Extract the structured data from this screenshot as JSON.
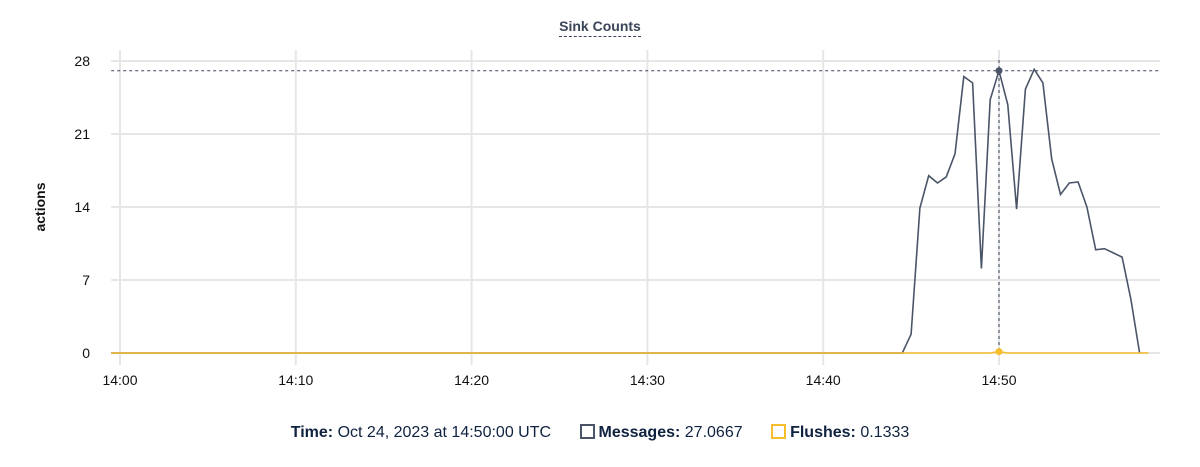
{
  "chart_data": {
    "type": "line",
    "title": "Sink Counts",
    "ylabel": "actions",
    "xlabel": "",
    "ylim": [
      0,
      28
    ],
    "yticks": [
      "0",
      "7",
      "14",
      "21",
      "28"
    ],
    "xticks": [
      "14:00",
      "14:10",
      "14:20",
      "14:30",
      "14:40",
      "14:50"
    ],
    "grid": true,
    "x_start": "13:59:30",
    "x_end": "14:58:30",
    "series": [
      {
        "name": "Messages",
        "color": "#4a5568",
        "points": [
          [
            "13:59:30",
            0
          ],
          [
            "14:44:30",
            0
          ],
          [
            "14:45:00",
            1.8
          ],
          [
            "14:45:30",
            13.9
          ],
          [
            "14:46:00",
            17.0
          ],
          [
            "14:46:30",
            16.3
          ],
          [
            "14:47:00",
            16.9
          ],
          [
            "14:47:30",
            19.1
          ],
          [
            "14:48:00",
            26.5
          ],
          [
            "14:48:30",
            25.9
          ],
          [
            "14:49:00",
            8.1
          ],
          [
            "14:49:30",
            24.3
          ],
          [
            "14:50:00",
            27.0667
          ],
          [
            "14:50:30",
            23.8
          ],
          [
            "14:51:00",
            13.8
          ],
          [
            "14:51:30",
            25.3
          ],
          [
            "14:52:00",
            27.2
          ],
          [
            "14:52:30",
            25.9
          ],
          [
            "14:53:00",
            18.6
          ],
          [
            "14:53:30",
            15.2
          ],
          [
            "14:54:00",
            16.3
          ],
          [
            "14:54:30",
            16.4
          ],
          [
            "14:55:00",
            14.0
          ],
          [
            "14:55:30",
            9.9
          ],
          [
            "14:56:00",
            10.0
          ],
          [
            "14:56:30",
            9.6
          ],
          [
            "14:57:00",
            9.2
          ],
          [
            "14:57:30",
            5.2
          ],
          [
            "14:58:00",
            0
          ]
        ]
      },
      {
        "name": "Flushes",
        "color": "#f6be2c",
        "points": [
          [
            "13:59:30",
            0
          ],
          [
            "14:49:30",
            0
          ],
          [
            "14:50:00",
            0.1333
          ],
          [
            "14:50:30",
            0
          ],
          [
            "14:58:30",
            0
          ]
        ]
      }
    ],
    "hover": {
      "time": "14:50:00",
      "series_values": [
        27.0667,
        0.1333
      ]
    }
  },
  "legend": {
    "time_label": "Time:",
    "time_value": "Oct 24, 2023 at 14:50:00 UTC",
    "messages_label": "Messages:",
    "messages_value": "27.0667",
    "flushes_label": "Flushes:",
    "flushes_value": "0.1333"
  }
}
